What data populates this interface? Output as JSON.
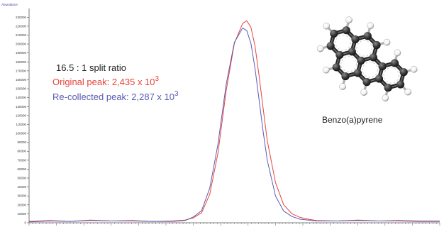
{
  "chart_data": {
    "type": "line",
    "ylabel": "Abundance",
    "ylim": [
      0,
      235000
    ],
    "yticks": [
      0,
      10000,
      20000,
      30000,
      40000,
      50000,
      60000,
      70000,
      80000,
      90000,
      100000,
      110000,
      120000,
      130000,
      140000,
      150000,
      160000,
      170000,
      180000,
      190000,
      200000,
      210000,
      220000,
      230000
    ],
    "ytick_labels": [
      "0",
      "10000",
      "20000",
      "30000",
      "40000",
      "50000",
      "60000",
      "70000",
      "80000",
      "90000",
      "100000",
      "110000",
      "120000",
      "130000",
      "140000",
      "150000",
      "160000",
      "170000",
      "180000",
      "190000",
      "200000",
      "210000",
      "220000",
      "230000"
    ],
    "xlim": [
      0,
      100
    ],
    "grid": false,
    "series": [
      {
        "color": "#e8443a",
        "x": [
          0,
          5,
          10,
          15,
          20,
          25,
          30,
          35,
          38,
          40,
          42,
          44,
          46,
          48,
          50,
          52,
          53,
          54,
          55,
          56,
          57,
          58,
          60,
          62,
          64,
          66,
          68,
          70,
          75,
          80,
          85,
          90,
          95,
          100
        ],
        "values": [
          1500,
          2500,
          1500,
          3000,
          2000,
          2500,
          1500,
          2000,
          3000,
          5500,
          11000,
          32000,
          78000,
          148000,
          201000,
          223000,
          226000,
          219000,
          198000,
          165000,
          128000,
          92000,
          45000,
          20000,
          10000,
          6000,
          4000,
          2500,
          2000,
          3000,
          2000,
          2500,
          2000,
          2000
        ]
      },
      {
        "color": "#5b5bb5",
        "x": [
          0,
          5,
          10,
          15,
          20,
          25,
          30,
          35,
          38,
          40,
          42,
          44,
          46,
          48,
          50,
          52,
          53,
          54,
          55,
          56,
          57,
          58,
          60,
          62,
          64,
          66,
          68,
          70,
          75,
          80,
          85,
          90,
          95,
          100
        ],
        "values": [
          1000,
          2000,
          1500,
          2500,
          2000,
          2000,
          1500,
          1500,
          2500,
          6500,
          13500,
          39000,
          88000,
          155000,
          202000,
          218000,
          215000,
          201000,
          173000,
          138000,
          102000,
          70000,
          30000,
          13000,
          7000,
          4000,
          3000,
          2000,
          2000,
          2500,
          2000,
          2000,
          1500,
          1500
        ]
      }
    ]
  },
  "annotations": {
    "ratio": "16.5 : 1 split ratio",
    "original": "Original peak: 2,435 x 10",
    "original_exp": "3",
    "recollected": "Re-collected peak: 2,287 x 10",
    "recollected_exp": "3",
    "molecule": "Benzo(a)pyrene"
  },
  "colors": {
    "original": "#e8443a",
    "recollected": "#5b5bb5",
    "axis": "#555555",
    "atom_carbon": "#3a3a3a",
    "atom_hydrogen": "#f2f2f2"
  }
}
